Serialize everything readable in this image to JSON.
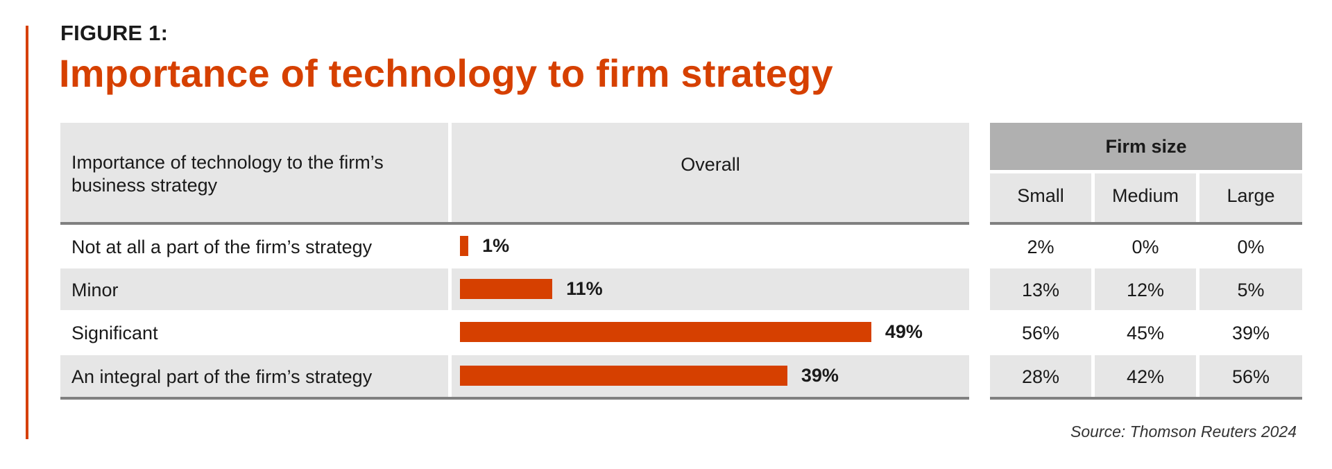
{
  "figure_label": "FIGURE 1:",
  "title": "Importance of technology to firm strategy",
  "table": {
    "row_header": "Importance of technology to the firm’s business strategy",
    "overall_header": "Overall",
    "group_header": "Firm size",
    "size_headers": [
      "Small",
      "Medium",
      "Large"
    ]
  },
  "chart_data": {
    "type": "bar",
    "orientation": "horizontal",
    "title": "Importance of technology to firm strategy",
    "categories": [
      "Not at all a part of the firm’s strategy",
      "Minor",
      "Significant",
      "An integral part of the firm’s strategy"
    ],
    "series": [
      {
        "name": "Overall",
        "values": [
          1,
          11,
          49,
          39
        ],
        "labels": [
          "1%",
          "11%",
          "49%",
          "39%"
        ]
      }
    ],
    "table_columns": [
      {
        "name": "Small",
        "values": [
          "2%",
          "13%",
          "56%",
          "28%"
        ]
      },
      {
        "name": "Medium",
        "values": [
          "0%",
          "12%",
          "45%",
          "42%"
        ]
      },
      {
        "name": "Large",
        "values": [
          "0%",
          "5%",
          "39%",
          "56%"
        ]
      }
    ],
    "xlim": [
      0,
      49
    ],
    "grid": false,
    "bar_color": "#d64000"
  },
  "source": "Source: Thomson Reuters 2024",
  "colors": {
    "accent": "#d64000",
    "header_bg": "#e6e6e6",
    "group_header_bg": "#b0b0b0",
    "rule": "#808080"
  }
}
